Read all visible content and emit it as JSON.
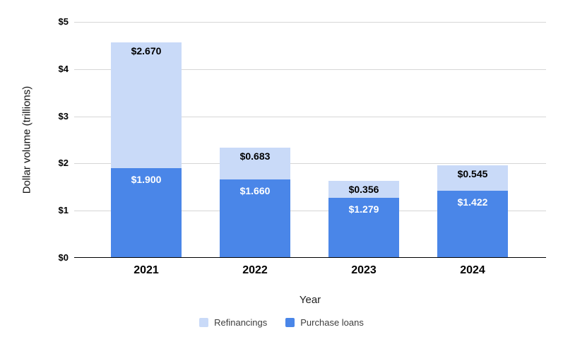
{
  "chart_data": {
    "type": "bar",
    "stacked": true,
    "title": "",
    "xlabel": "Year",
    "ylabel": "Dollar volume (trillions)",
    "categories": [
      "2021",
      "2022",
      "2023",
      "2024"
    ],
    "series": [
      {
        "name": "Refinancings",
        "color": "#c9daf8",
        "label_color": "#000000",
        "values": [
          2.67,
          0.683,
          0.356,
          0.545
        ],
        "labels": [
          "$2.670",
          "$0.683",
          "$0.356",
          "$0.545"
        ]
      },
      {
        "name": "Purchase loans",
        "color": "#4a86e8",
        "label_color": "#ffffff",
        "values": [
          1.9,
          1.66,
          1.279,
          1.422
        ],
        "labels": [
          "$1.900",
          "$1.660",
          "$1.279",
          "$1.422"
        ]
      }
    ],
    "totals": [
      4.57,
      2.343,
      1.635,
      1.967
    ],
    "ylim": [
      0,
      5
    ],
    "yticks": [
      "$0",
      "$1",
      "$2",
      "$3",
      "$4",
      "$5"
    ],
    "grid": true,
    "legend_position": "bottom",
    "colors": {
      "gridline": "#d6d6d6",
      "axis_line": "#000000",
      "background": "#ffffff"
    }
  }
}
